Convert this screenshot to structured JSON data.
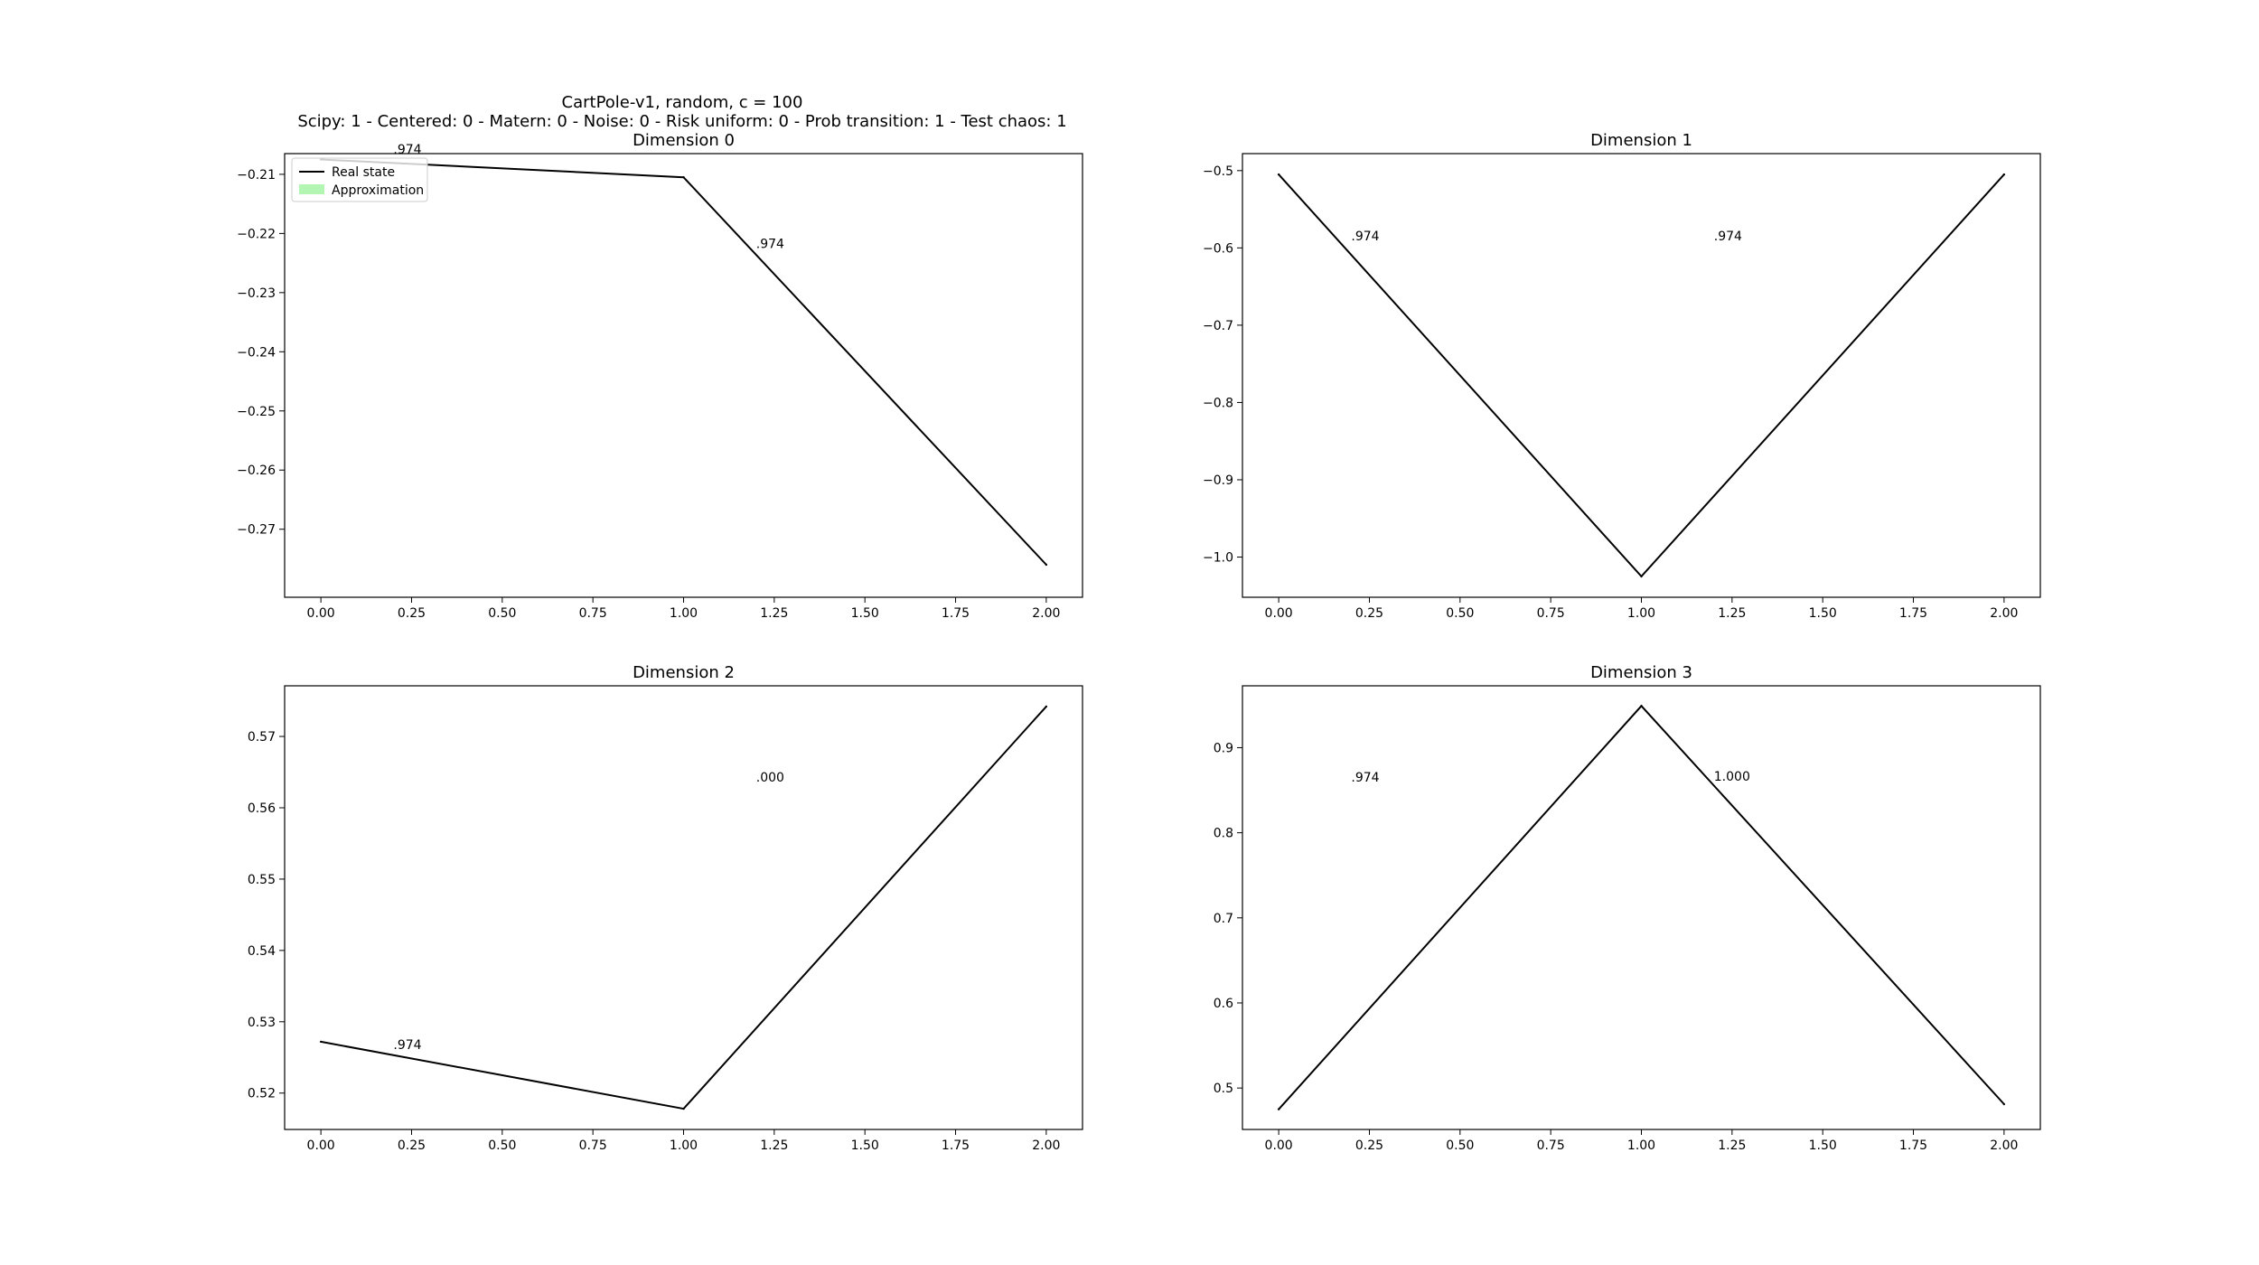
{
  "figure": {
    "title_lines": [
      "CartPole-v1, random, c = 100",
      "Scipy: 1 - Centered: 0 - Matern: 0 - Noise: 0 - Risk uniform: 0 - Prob transition: 1 - Test chaos: 1"
    ]
  },
  "legend": {
    "entries": [
      {
        "label": "Real state",
        "kind": "line",
        "color": "#000000"
      },
      {
        "label": "Approximation",
        "kind": "patch",
        "color": "#b3f5b3"
      }
    ],
    "placement": "upper-left (in Dimension 0 panel)"
  },
  "colors": {
    "line": "#000000",
    "approximation": "#b3f5b3",
    "frame": "#000000"
  },
  "chart_data": [
    {
      "type": "line",
      "title": "Dimension 0",
      "x": [
        0,
        1,
        2
      ],
      "series": [
        {
          "name": "Real state",
          "values": [
            -0.2075,
            -0.2105,
            -0.276
          ]
        }
      ],
      "xlim": [
        -0.1,
        2.1
      ],
      "ylim": [
        -0.2815,
        -0.2065
      ],
      "xticks": [
        0,
        0.25,
        0.5,
        0.75,
        1,
        1.25,
        1.5,
        1.75,
        2
      ],
      "xtick_labels": [
        "0.00",
        "0.25",
        "0.50",
        "0.75",
        "1.00",
        "1.25",
        "1.50",
        "1.75",
        "2.00"
      ],
      "yticks": [
        -0.21,
        -0.22,
        -0.23,
        -0.24,
        -0.25,
        -0.26,
        -0.27
      ],
      "ytick_labels": [
        "−0.21",
        "−0.22",
        "−0.23",
        "−0.24",
        "−0.25",
        "−0.26",
        "−0.27"
      ],
      "annotations": [
        {
          "text": ".974",
          "x": 0.2,
          "y": -0.2065
        },
        {
          "text": ".974",
          "x": 1.2,
          "y": -0.2225
        }
      ],
      "grid": false,
      "legend": true
    },
    {
      "type": "line",
      "title": "Dimension 1",
      "x": [
        0,
        1,
        2
      ],
      "series": [
        {
          "name": "Real state",
          "values": [
            -0.505,
            -1.025,
            -0.505
          ]
        }
      ],
      "xlim": [
        -0.1,
        2.1
      ],
      "ylim": [
        -1.052,
        -0.478
      ],
      "xticks": [
        0,
        0.25,
        0.5,
        0.75,
        1,
        1.25,
        1.5,
        1.75,
        2
      ],
      "xtick_labels": [
        "0.00",
        "0.25",
        "0.50",
        "0.75",
        "1.00",
        "1.25",
        "1.50",
        "1.75",
        "2.00"
      ],
      "yticks": [
        -0.5,
        -0.6,
        -0.7,
        -0.8,
        -0.9,
        -1.0
      ],
      "ytick_labels": [
        "−0.5",
        "−0.6",
        "−0.7",
        "−0.8",
        "−0.9",
        "−1.0"
      ],
      "annotations": [
        {
          "text": ".974",
          "x": 0.2,
          "y": -0.59
        },
        {
          "text": ".974",
          "x": 1.2,
          "y": -0.59
        }
      ],
      "grid": false,
      "legend": false
    },
    {
      "type": "line",
      "title": "Dimension 2",
      "x": [
        0,
        1,
        2
      ],
      "series": [
        {
          "name": "Real state",
          "values": [
            0.5272,
            0.5178,
            0.5742
          ]
        }
      ],
      "xlim": [
        -0.1,
        2.1
      ],
      "ylim": [
        0.5149,
        0.5771
      ],
      "xticks": [
        0,
        0.25,
        0.5,
        0.75,
        1,
        1.25,
        1.5,
        1.75,
        2
      ],
      "xtick_labels": [
        "0.00",
        "0.25",
        "0.50",
        "0.75",
        "1.00",
        "1.25",
        "1.50",
        "1.75",
        "2.00"
      ],
      "yticks": [
        0.52,
        0.53,
        0.54,
        0.55,
        0.56,
        0.57
      ],
      "ytick_labels": [
        "0.52",
        "0.53",
        "0.54",
        "0.55",
        "0.56",
        "0.57"
      ],
      "annotations": [
        {
          "text": ".974",
          "x": 0.2,
          "y": 0.5262
        },
        {
          "text": ".000",
          "x": 1.2,
          "y": 0.5637
        }
      ],
      "grid": false,
      "legend": false
    },
    {
      "type": "line",
      "title": "Dimension 3",
      "x": [
        0,
        1,
        2
      ],
      "series": [
        {
          "name": "Real state",
          "values": [
            0.475,
            0.949,
            0.481
          ]
        }
      ],
      "xlim": [
        -0.1,
        2.1
      ],
      "ylim": [
        0.4513,
        0.9727
      ],
      "xticks": [
        0,
        0.25,
        0.5,
        0.75,
        1,
        1.25,
        1.5,
        1.75,
        2
      ],
      "xtick_labels": [
        "0.00",
        "0.25",
        "0.50",
        "0.75",
        "1.00",
        "1.25",
        "1.50",
        "1.75",
        "2.00"
      ],
      "yticks": [
        0.5,
        0.6,
        0.7,
        0.8,
        0.9
      ],
      "ytick_labels": [
        "0.5",
        "0.6",
        "0.7",
        "0.8",
        "0.9"
      ],
      "annotations": [
        {
          "text": ".974",
          "x": 0.2,
          "y": 0.86
        },
        {
          "text": "1.000",
          "x": 1.2,
          "y": 0.861
        }
      ],
      "grid": false,
      "legend": false
    }
  ]
}
